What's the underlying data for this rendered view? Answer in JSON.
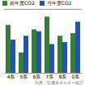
{
  "chart_data": {
    "type": "bar",
    "categories": [
      "4系",
      "5系",
      "6系",
      "7系",
      "8系",
      "0系"
    ],
    "series": [
      {
        "name": "前年度CO2",
        "color": "#3a7d3a",
        "values": [
          75,
          32,
          68,
          88,
          58,
          62
        ]
      },
      {
        "name": "当年度CO2",
        "color": "#2255aa",
        "values": [
          52,
          58,
          65,
          45,
          48,
          80
        ]
      }
    ],
    "ylim": [
      0,
      100
    ],
    "yticks": [],
    "grid": false,
    "legend": "upper left",
    "tick_labels": "x",
    "annotations": [
      "出典：交通エネルギー統計"
    ]
  }
}
